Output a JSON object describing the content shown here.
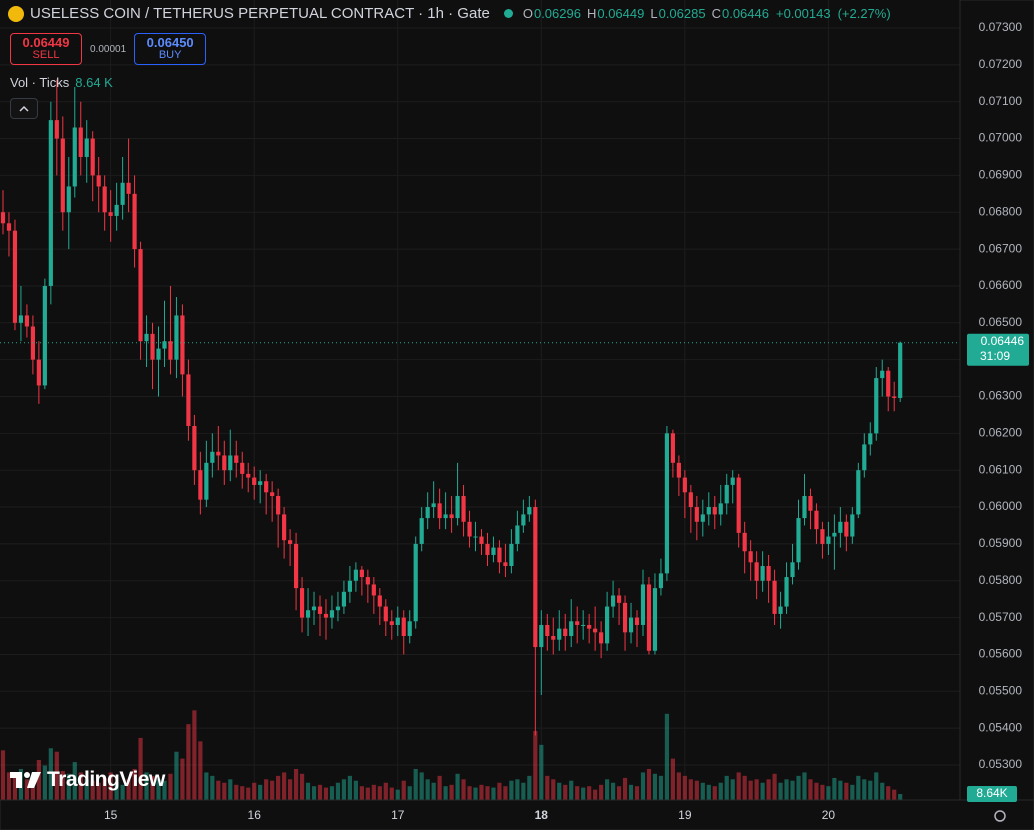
{
  "chart_data": {
    "type": "candlestick",
    "title": "USELESS COIN / TETHERUS PERPETUAL CONTRACT · 1h · Gate",
    "ohlc_labels": [
      "O",
      "H",
      "L",
      "C"
    ],
    "ohlc_values": [
      0.06296,
      0.06449,
      0.06285,
      0.06446
    ],
    "change": {
      "value": 0.00143,
      "label": "+0.00143"
    },
    "change_pct": {
      "value": 2.27,
      "label": "(+2.27%)"
    },
    "sell": {
      "price": 0.06449,
      "label": "SELL"
    },
    "spread": 1e-05,
    "buy": {
      "price": {
        "value": 0.0645,
        "label": "0.06450"
      },
      "label": "BUY"
    },
    "volume_title": "Vol · Ticks",
    "volume_last": {
      "value": 8640,
      "label": "8.64 K"
    },
    "volume_axis_last": {
      "value": 8640,
      "label": "8.64K"
    },
    "last_price": 0.06446,
    "countdown": "31:09",
    "brand": "TradingView",
    "colors": {
      "up": "#22ab94",
      "down": "#f23645"
    },
    "grid": true,
    "xlim": [
      -0.5,
      160
    ],
    "xticks": [
      {
        "value": 18,
        "label": "15"
      },
      {
        "value": 42,
        "label": "16"
      },
      {
        "value": 66,
        "label": "17"
      },
      {
        "value": 90,
        "label": "18"
      },
      {
        "value": 114,
        "label": "19"
      },
      {
        "value": 138,
        "label": "20"
      }
    ],
    "ylim": [
      0.05205,
      0.07376
    ],
    "yticks": [
      {
        "value": 0.053,
        "label": "0.05300"
      },
      {
        "value": 0.054,
        "label": "0.05400"
      },
      {
        "value": 0.055,
        "label": "0.05500"
      },
      {
        "value": 0.056,
        "label": "0.05600"
      },
      {
        "value": 0.057,
        "label": "0.05700"
      },
      {
        "value": 0.058,
        "label": "0.05800"
      },
      {
        "value": 0.059,
        "label": "0.05900"
      },
      {
        "value": 0.06,
        "label": "0.06000"
      },
      {
        "value": 0.061,
        "label": "0.06100"
      },
      {
        "value": 0.062,
        "label": "0.06200"
      },
      {
        "value": 0.063,
        "label": "0.06300"
      },
      {
        "value": 0.064,
        "label": "0.06400"
      },
      {
        "value": 0.065,
        "label": "0.06500"
      },
      {
        "value": 0.066,
        "label": "0.06600"
      },
      {
        "value": 0.067,
        "label": "0.06700"
      },
      {
        "value": 0.068,
        "label": "0.06800"
      },
      {
        "value": 0.069,
        "label": "0.06900"
      },
      {
        "value": 0.07,
        "label": "0.07000"
      },
      {
        "value": 0.071,
        "label": "0.07100"
      },
      {
        "value": 0.072,
        "label": "0.07200"
      },
      {
        "value": 0.073,
        "label": "0.07300"
      }
    ],
    "vlim": [
      0,
      290000
    ],
    "open": [
      0.068,
      0.0677,
      0.0675,
      0.065,
      0.0652,
      0.0649,
      0.064,
      0.0633,
      0.066,
      0.0705,
      0.07,
      0.068,
      0.0687,
      0.0703,
      0.0695,
      0.07,
      0.069,
      0.0687,
      0.068,
      0.0679,
      0.0682,
      0.0688,
      0.0685,
      0.067,
      0.0645,
      0.0647,
      0.064,
      0.0643,
      0.0645,
      0.064,
      0.0652,
      0.0636,
      0.0622,
      0.061,
      0.0602,
      0.0612,
      0.0615,
      0.0614,
      0.061,
      0.0614,
      0.0612,
      0.0609,
      0.0608,
      0.0606,
      0.0607,
      0.0604,
      0.0603,
      0.0598,
      0.0591,
      0.059,
      0.0578,
      0.057,
      0.0572,
      0.0573,
      0.0571,
      0.057,
      0.0572,
      0.0573,
      0.0577,
      0.058,
      0.0583,
      0.0581,
      0.0579,
      0.0576,
      0.0573,
      0.0569,
      0.0568,
      0.057,
      0.0565,
      0.0569,
      0.059,
      0.0597,
      0.06,
      0.0601,
      0.0597,
      0.0598,
      0.0597,
      0.0603,
      0.0596,
      0.0592,
      0.0592,
      0.059,
      0.0587,
      0.0589,
      0.0585,
      0.0584,
      0.059,
      0.0595,
      0.0598,
      0.06,
      0.0562,
      0.0568,
      0.0565,
      0.0564,
      0.0567,
      0.0565,
      0.0569,
      0.0568,
      0.0568,
      0.0567,
      0.0566,
      0.0563,
      0.0573,
      0.0576,
      0.0574,
      0.0566,
      0.057,
      0.0568,
      0.0579,
      0.0561,
      0.0578,
      0.0582,
      0.062,
      0.0612,
      0.0608,
      0.0604,
      0.06,
      0.0596,
      0.0598,
      0.06,
      0.0598,
      0.0601,
      0.0606,
      0.0608,
      0.0593,
      0.0588,
      0.0585,
      0.058,
      0.0584,
      0.058,
      0.0571,
      0.0573,
      0.0581,
      0.0585,
      0.0597,
      0.0603,
      0.0599,
      0.0594,
      0.059,
      0.0592,
      0.0593,
      0.0596,
      0.0592,
      0.0598,
      0.061,
      0.0617,
      0.062,
      0.0635,
      0.0637,
      0.063,
      0.06296
    ],
    "high": [
      0.0686,
      0.068,
      0.0678,
      0.066,
      0.0655,
      0.0652,
      0.0645,
      0.0662,
      0.071,
      0.0716,
      0.0706,
      0.0695,
      0.0714,
      0.071,
      0.0705,
      0.0702,
      0.0695,
      0.069,
      0.0686,
      0.0688,
      0.0695,
      0.07,
      0.069,
      0.0672,
      0.0652,
      0.065,
      0.0649,
      0.0656,
      0.066,
      0.0657,
      0.0655,
      0.064,
      0.0625,
      0.0615,
      0.0618,
      0.062,
      0.0622,
      0.0618,
      0.0621,
      0.0618,
      0.0615,
      0.0612,
      0.0611,
      0.061,
      0.0609,
      0.0607,
      0.0605,
      0.06,
      0.0594,
      0.0593,
      0.0581,
      0.0578,
      0.0577,
      0.0576,
      0.0575,
      0.0576,
      0.0577,
      0.058,
      0.0584,
      0.0585,
      0.0584,
      0.0583,
      0.0581,
      0.0578,
      0.0575,
      0.0572,
      0.0573,
      0.0572,
      0.0572,
      0.0592,
      0.06,
      0.0604,
      0.0607,
      0.0605,
      0.0604,
      0.0603,
      0.0612,
      0.0606,
      0.0599,
      0.0596,
      0.0594,
      0.0593,
      0.0592,
      0.0591,
      0.059,
      0.0594,
      0.0599,
      0.0602,
      0.0603,
      0.0602,
      0.0572,
      0.0571,
      0.057,
      0.0572,
      0.0571,
      0.0575,
      0.0573,
      0.0572,
      0.0571,
      0.0573,
      0.0569,
      0.0577,
      0.058,
      0.0578,
      0.0576,
      0.0574,
      0.0572,
      0.0583,
      0.0581,
      0.0582,
      0.0586,
      0.0622,
      0.0621,
      0.0614,
      0.061,
      0.0606,
      0.0603,
      0.0602,
      0.0604,
      0.0603,
      0.0606,
      0.0609,
      0.061,
      0.0609,
      0.0596,
      0.0591,
      0.0588,
      0.0588,
      0.0587,
      0.0583,
      0.0577,
      0.0585,
      0.059,
      0.0602,
      0.0609,
      0.0605,
      0.0601,
      0.0596,
      0.0596,
      0.0598,
      0.06,
      0.0598,
      0.06,
      0.0612,
      0.062,
      0.0623,
      0.0638,
      0.064,
      0.0638,
      0.0634,
      0.06449
    ],
    "low": [
      0.0674,
      0.0668,
      0.0648,
      0.0645,
      0.0646,
      0.0636,
      0.0628,
      0.0632,
      0.0655,
      0.069,
      0.0675,
      0.067,
      0.0684,
      0.069,
      0.0688,
      0.0683,
      0.068,
      0.0675,
      0.0672,
      0.0675,
      0.0678,
      0.068,
      0.0665,
      0.064,
      0.0638,
      0.0632,
      0.063,
      0.0638,
      0.0636,
      0.0635,
      0.063,
      0.0618,
      0.0606,
      0.0598,
      0.06,
      0.0608,
      0.061,
      0.0606,
      0.0607,
      0.0608,
      0.0605,
      0.0604,
      0.0602,
      0.0601,
      0.0598,
      0.0596,
      0.0589,
      0.0586,
      0.0584,
      0.0572,
      0.0566,
      0.0565,
      0.0568,
      0.0565,
      0.0564,
      0.0567,
      0.0569,
      0.0571,
      0.0574,
      0.0577,
      0.0576,
      0.0574,
      0.0571,
      0.0568,
      0.0565,
      0.0564,
      0.0565,
      0.056,
      0.0563,
      0.0567,
      0.0588,
      0.0594,
      0.0597,
      0.0594,
      0.0594,
      0.0593,
      0.0595,
      0.0592,
      0.0589,
      0.0588,
      0.0587,
      0.0584,
      0.0585,
      0.0582,
      0.0581,
      0.0582,
      0.0588,
      0.0593,
      0.0596,
      0.0538,
      0.0549,
      0.0561,
      0.056,
      0.0561,
      0.0561,
      0.0562,
      0.0563,
      0.0564,
      0.0563,
      0.0561,
      0.0559,
      0.0561,
      0.057,
      0.0568,
      0.0561,
      0.0563,
      0.0562,
      0.0565,
      0.056,
      0.056,
      0.0576,
      0.058,
      0.0608,
      0.0603,
      0.0597,
      0.0593,
      0.0591,
      0.0592,
      0.0595,
      0.0594,
      0.0595,
      0.0598,
      0.0601,
      0.0589,
      0.0582,
      0.058,
      0.0575,
      0.0577,
      0.0574,
      0.0568,
      0.0567,
      0.0571,
      0.0579,
      0.0583,
      0.0595,
      0.0594,
      0.059,
      0.0586,
      0.0587,
      0.0583,
      0.0589,
      0.0588,
      0.059,
      0.0597,
      0.0608,
      0.0614,
      0.0618,
      0.063,
      0.0626,
      0.0626,
      0.06285
    ],
    "close": [
      0.0677,
      0.0675,
      0.065,
      0.0652,
      0.0649,
      0.064,
      0.0633,
      0.066,
      0.0705,
      0.07,
      0.068,
      0.0687,
      0.0703,
      0.0695,
      0.07,
      0.069,
      0.0687,
      0.068,
      0.0679,
      0.0682,
      0.0688,
      0.0685,
      0.067,
      0.0645,
      0.0647,
      0.064,
      0.0643,
      0.0645,
      0.064,
      0.0652,
      0.0636,
      0.0622,
      0.061,
      0.0602,
      0.0612,
      0.0615,
      0.0614,
      0.061,
      0.0614,
      0.0612,
      0.0609,
      0.0608,
      0.0606,
      0.0607,
      0.0604,
      0.0603,
      0.0598,
      0.0591,
      0.059,
      0.0578,
      0.057,
      0.0572,
      0.0573,
      0.0571,
      0.057,
      0.0572,
      0.0573,
      0.0577,
      0.058,
      0.0583,
      0.0581,
      0.0579,
      0.0576,
      0.0573,
      0.0569,
      0.0568,
      0.057,
      0.0565,
      0.0569,
      0.059,
      0.0597,
      0.06,
      0.0601,
      0.0597,
      0.0598,
      0.0597,
      0.0603,
      0.0596,
      0.0592,
      0.0592,
      0.059,
      0.0587,
      0.0589,
      0.0585,
      0.0584,
      0.059,
      0.0595,
      0.0598,
      0.06,
      0.0562,
      0.0568,
      0.0565,
      0.0564,
      0.0567,
      0.0565,
      0.0569,
      0.0568,
      0.0568,
      0.0567,
      0.0566,
      0.0563,
      0.0573,
      0.0576,
      0.0574,
      0.0566,
      0.057,
      0.0568,
      0.0579,
      0.0561,
      0.0578,
      0.0582,
      0.062,
      0.0612,
      0.0608,
      0.0604,
      0.06,
      0.0596,
      0.0598,
      0.06,
      0.0598,
      0.0601,
      0.0606,
      0.0608,
      0.0593,
      0.0588,
      0.0585,
      0.058,
      0.0584,
      0.058,
      0.0571,
      0.0573,
      0.0581,
      0.0585,
      0.0597,
      0.0603,
      0.0599,
      0.0594,
      0.059,
      0.0592,
      0.0593,
      0.0596,
      0.0592,
      0.0598,
      0.061,
      0.0617,
      0.062,
      0.0635,
      0.0637,
      0.063,
      0.06296,
      0.06446
    ],
    "volume": [
      72000,
      40000,
      35000,
      45000,
      30000,
      28000,
      58000,
      50000,
      75000,
      70000,
      42000,
      38000,
      55000,
      40000,
      30000,
      28000,
      25000,
      32000,
      40000,
      26000,
      22000,
      30000,
      45000,
      90000,
      40000,
      35000,
      30000,
      28000,
      38000,
      70000,
      60000,
      110000,
      130000,
      85000,
      40000,
      35000,
      28000,
      25000,
      30000,
      22000,
      20000,
      18000,
      25000,
      22000,
      30000,
      28000,
      35000,
      40000,
      30000,
      45000,
      38000,
      25000,
      20000,
      22000,
      18000,
      20000,
      25000,
      30000,
      35000,
      28000,
      20000,
      18000,
      22000,
      20000,
      25000,
      18000,
      15000,
      28000,
      20000,
      45000,
      40000,
      30000,
      25000,
      35000,
      20000,
      22000,
      38000,
      30000,
      20000,
      18000,
      22000,
      20000,
      18000,
      25000,
      20000,
      28000,
      30000,
      25000,
      35000,
      100000,
      80000,
      35000,
      30000,
      25000,
      22000,
      28000,
      20000,
      18000,
      20000,
      15000,
      22000,
      30000,
      25000,
      20000,
      32000,
      22000,
      20000,
      40000,
      45000,
      38000,
      35000,
      125000,
      60000,
      40000,
      35000,
      30000,
      28000,
      25000,
      22000,
      20000,
      25000,
      35000,
      30000,
      40000,
      35000,
      28000,
      30000,
      25000,
      30000,
      38000,
      25000,
      30000,
      28000,
      35000,
      40000,
      30000,
      25000,
      22000,
      20000,
      32000,
      28000,
      25000,
      22000,
      35000,
      30000,
      28000,
      40000,
      25000,
      20000,
      15000,
      8640
    ]
  }
}
